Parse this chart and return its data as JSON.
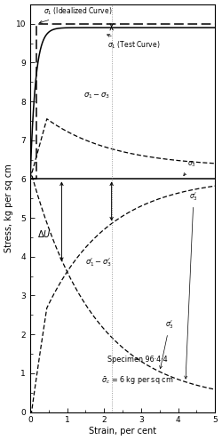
{
  "xlabel": "Strain, per cent",
  "ylabel": "Stress, kg per sq cm",
  "xlim": [
    0,
    5
  ],
  "ylim": [
    0,
    10.5
  ],
  "sigma3_initial": 6.0,
  "background_color": "#ffffff",
  "line_color": "#000000",
  "annotation_specimen": "Specimen 96·4·4",
  "annotation_sigma": "σ̅₃ = 6 kg per sq cm"
}
